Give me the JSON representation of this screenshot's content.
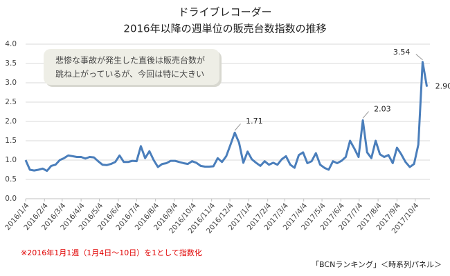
{
  "chart_data": {
    "type": "line",
    "title": "ドライブレコーダー",
    "subtitle": "2016年以降の週単位の販売台数指数の推移",
    "annotation": [
      "悲惨な事故が発生した直後は販売台数が",
      "跳ね上がっているが、今回は特に大きい"
    ],
    "footnote": "※2016年1月1週（1月4日～10日）を1として指数化",
    "source": "「BCNランキング」＜時系列パネル＞",
    "color": "#4a7ebb",
    "grid": true,
    "ylim": [
      0,
      4
    ],
    "yticks": [
      {
        "value": 0,
        "label": "0.0"
      },
      0.5,
      {
        "value": 1,
        "label": "1.0"
      },
      1.5,
      {
        "value": 2,
        "label": "2.0"
      },
      2.5,
      {
        "value": 3,
        "label": "3.0"
      },
      3.5,
      {
        "value": 4,
        "label": "4.0"
      }
    ],
    "xlim": [
      "2016-01-04",
      "2017-10-28"
    ],
    "xticks": [
      {
        "value": "2016-01-04",
        "label": "2016/1/4"
      },
      {
        "value": "2016-02-04",
        "label": "2016/2/4"
      },
      {
        "value": "2016-03-04",
        "label": "2016/3/4"
      },
      {
        "value": "2016-04-04",
        "label": "2016/4/4"
      },
      {
        "value": "2016-05-04",
        "label": "2016/5/4"
      },
      {
        "value": "2016-06-04",
        "label": "2016/6/4"
      },
      {
        "value": "2016-07-04",
        "label": "2016/7/4"
      },
      {
        "value": "2016-08-04",
        "label": "2016/8/4"
      },
      {
        "value": "2016-09-04",
        "label": "2016/9/4"
      },
      {
        "value": "2016-10-04",
        "label": "2016/10/4"
      },
      {
        "value": "2016-11-04",
        "label": "2016/11/4"
      },
      {
        "value": "2016-12-04",
        "label": "2016/12/4"
      },
      {
        "value": "2017-01-04",
        "label": "2017/1/4"
      },
      {
        "value": "2017-02-04",
        "label": "2017/2/4"
      },
      {
        "value": "2017-03-04",
        "label": "2017/3/4"
      },
      {
        "value": "2017-04-04",
        "label": "2017/4/4"
      },
      {
        "value": "2017-05-04",
        "label": "2017/5/4"
      },
      {
        "value": "2017-06-04",
        "label": "2017/6/4"
      },
      {
        "value": "2017-07-04",
        "label": "2017/7/4"
      },
      {
        "value": "2017-08-04",
        "label": "2017/8/4"
      },
      {
        "value": "2017-09-04",
        "label": "2017/9/4"
      },
      {
        "value": "2017-10-04",
        "label": "2017/10/4"
      }
    ],
    "x": [
      "2016-01-04",
      "2016-01-11",
      "2016-01-18",
      "2016-01-25",
      "2016-02-01",
      "2016-02-08",
      "2016-02-15",
      "2016-02-22",
      "2016-02-29",
      "2016-03-07",
      "2016-03-14",
      "2016-03-21",
      "2016-03-28",
      "2016-04-04",
      "2016-04-11",
      "2016-04-18",
      "2016-04-25",
      "2016-05-02",
      "2016-05-09",
      "2016-05-16",
      "2016-05-23",
      "2016-05-30",
      "2016-06-06",
      "2016-06-13",
      "2016-06-20",
      "2016-06-27",
      "2016-07-04",
      "2016-07-11",
      "2016-07-18",
      "2016-07-25",
      "2016-08-01",
      "2016-08-08",
      "2016-08-15",
      "2016-08-22",
      "2016-08-29",
      "2016-09-05",
      "2016-09-12",
      "2016-09-19",
      "2016-09-26",
      "2016-10-03",
      "2016-10-10",
      "2016-10-17",
      "2016-10-24",
      "2016-10-31",
      "2016-11-07",
      "2016-11-14",
      "2016-11-21",
      "2016-11-28",
      "2016-12-05",
      "2016-12-12",
      "2016-12-19",
      "2016-12-26",
      "2017-01-02",
      "2017-01-09",
      "2017-01-16",
      "2017-01-23",
      "2017-01-30",
      "2017-02-06",
      "2017-02-13",
      "2017-02-20",
      "2017-02-27",
      "2017-03-06",
      "2017-03-13",
      "2017-03-20",
      "2017-03-27",
      "2017-04-03",
      "2017-04-10",
      "2017-04-17",
      "2017-04-24",
      "2017-05-01",
      "2017-05-08",
      "2017-05-15",
      "2017-05-22",
      "2017-05-29",
      "2017-06-05",
      "2017-06-12",
      "2017-06-19",
      "2017-06-26",
      "2017-07-03",
      "2017-07-10",
      "2017-07-17",
      "2017-07-24",
      "2017-07-31",
      "2017-08-07",
      "2017-08-14",
      "2017-08-21",
      "2017-08-28",
      "2017-09-04",
      "2017-09-11",
      "2017-09-18",
      "2017-09-25",
      "2017-10-02",
      "2017-10-09",
      "2017-10-16",
      "2017-10-23"
    ],
    "values": [
      1.0,
      0.75,
      0.73,
      0.75,
      0.78,
      0.72,
      0.85,
      0.88,
      1.0,
      1.05,
      1.12,
      1.1,
      1.08,
      1.08,
      1.04,
      1.08,
      1.07,
      0.97,
      0.88,
      0.87,
      0.9,
      0.95,
      1.12,
      0.95,
      0.95,
      0.98,
      0.97,
      1.36,
      1.05,
      1.23,
      1.0,
      0.82,
      0.9,
      0.92,
      0.98,
      0.98,
      0.95,
      0.92,
      0.9,
      0.97,
      0.93,
      0.85,
      0.83,
      0.83,
      0.84,
      1.05,
      0.95,
      1.1,
      1.4,
      1.71,
      1.45,
      0.93,
      1.22,
      1.02,
      0.93,
      0.85,
      0.97,
      0.88,
      0.93,
      0.88,
      1.02,
      1.1,
      0.88,
      0.8,
      1.13,
      1.2,
      0.92,
      0.97,
      1.18,
      0.88,
      0.8,
      0.75,
      0.97,
      0.92,
      0.98,
      1.08,
      1.5,
      1.3,
      1.08,
      2.03,
      1.2,
      1.05,
      1.5,
      1.15,
      1.08,
      1.13,
      0.92,
      1.32,
      1.15,
      0.95,
      0.82,
      0.9,
      1.4,
      3.54,
      2.9
    ],
    "value_labels": {
      "49": "1.71",
      "79": "2.03",
      "93": "3.54",
      "94": "2.90"
    }
  }
}
